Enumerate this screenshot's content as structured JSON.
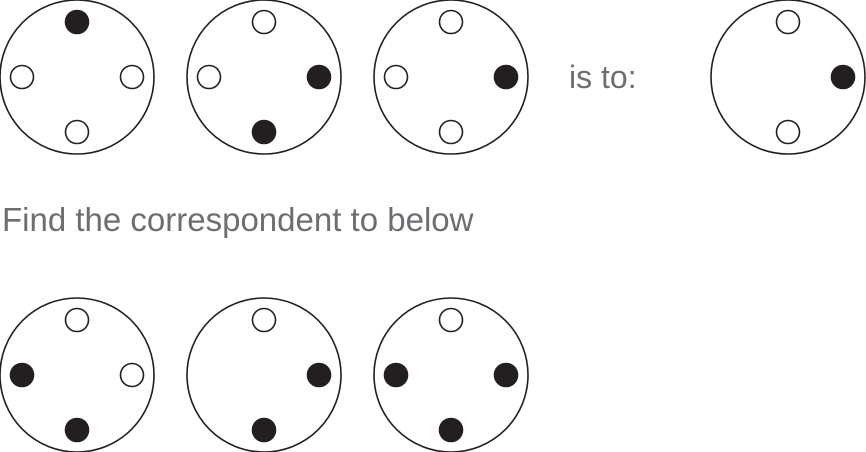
{
  "relation_label": "is to:",
  "instruction": "Find the correspondent to below",
  "colors": {
    "stroke": "#231f20",
    "dot_filled": "#231f20",
    "dot_empty": "#ffffff",
    "text": "#6d6e71"
  },
  "dot_order": [
    "top",
    "right",
    "bottom",
    "left"
  ],
  "example_sequence": [
    {
      "top": "filled",
      "right": "empty",
      "bottom": "empty",
      "left": "empty"
    },
    {
      "top": "empty",
      "right": "filled",
      "bottom": "filled",
      "left": "empty"
    },
    {
      "top": "empty",
      "right": "filled",
      "bottom": "empty",
      "left": "empty"
    }
  ],
  "example_answer": {
    "top": "empty",
    "right": "filled",
    "bottom": "empty",
    "left": "none"
  },
  "question_sequence": [
    {
      "top": "empty",
      "right": "empty",
      "bottom": "filled",
      "left": "filled"
    },
    {
      "top": "empty",
      "right": "filled",
      "bottom": "filled",
      "left": "none"
    },
    {
      "top": "empty",
      "right": "filled",
      "bottom": "filled",
      "left": "filled"
    }
  ]
}
